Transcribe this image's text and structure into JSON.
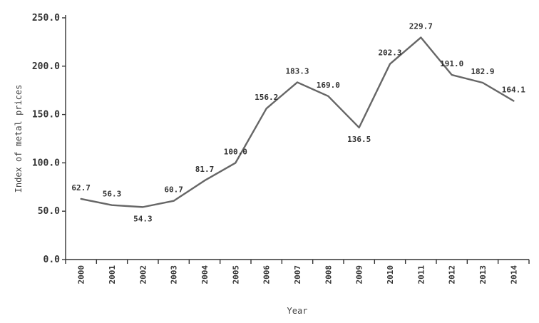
{
  "chart_data": {
    "type": "line",
    "xlabel": "Year",
    "ylabel": "Index of metal prices",
    "ylim": [
      0,
      250
    ],
    "yticks": [
      "0.0",
      "50.0",
      "100.0",
      "150.0",
      "200.0",
      "250.0"
    ],
    "categories": [
      "2000",
      "2001",
      "2002",
      "2003",
      "2004",
      "2005",
      "2006",
      "2007",
      "2008",
      "2009",
      "2010",
      "2011",
      "2012",
      "2013",
      "2014"
    ],
    "series": [
      {
        "values": [
          62.7,
          56.3,
          54.3,
          60.7,
          81.7,
          100.0,
          156.2,
          183.3,
          169.0,
          136.5,
          202.3,
          229.7,
          191.0,
          182.9,
          164.1
        ],
        "labels": [
          "62.7",
          "56.3",
          "54.3",
          "60.7",
          "81.7",
          "100.0",
          "156.2",
          "183.3",
          "169.0",
          "136.5",
          "202.3",
          "229.7",
          "191.0",
          "182.9",
          "164.1"
        ],
        "color": "#666666"
      }
    ],
    "grid": false,
    "legend": "none"
  }
}
